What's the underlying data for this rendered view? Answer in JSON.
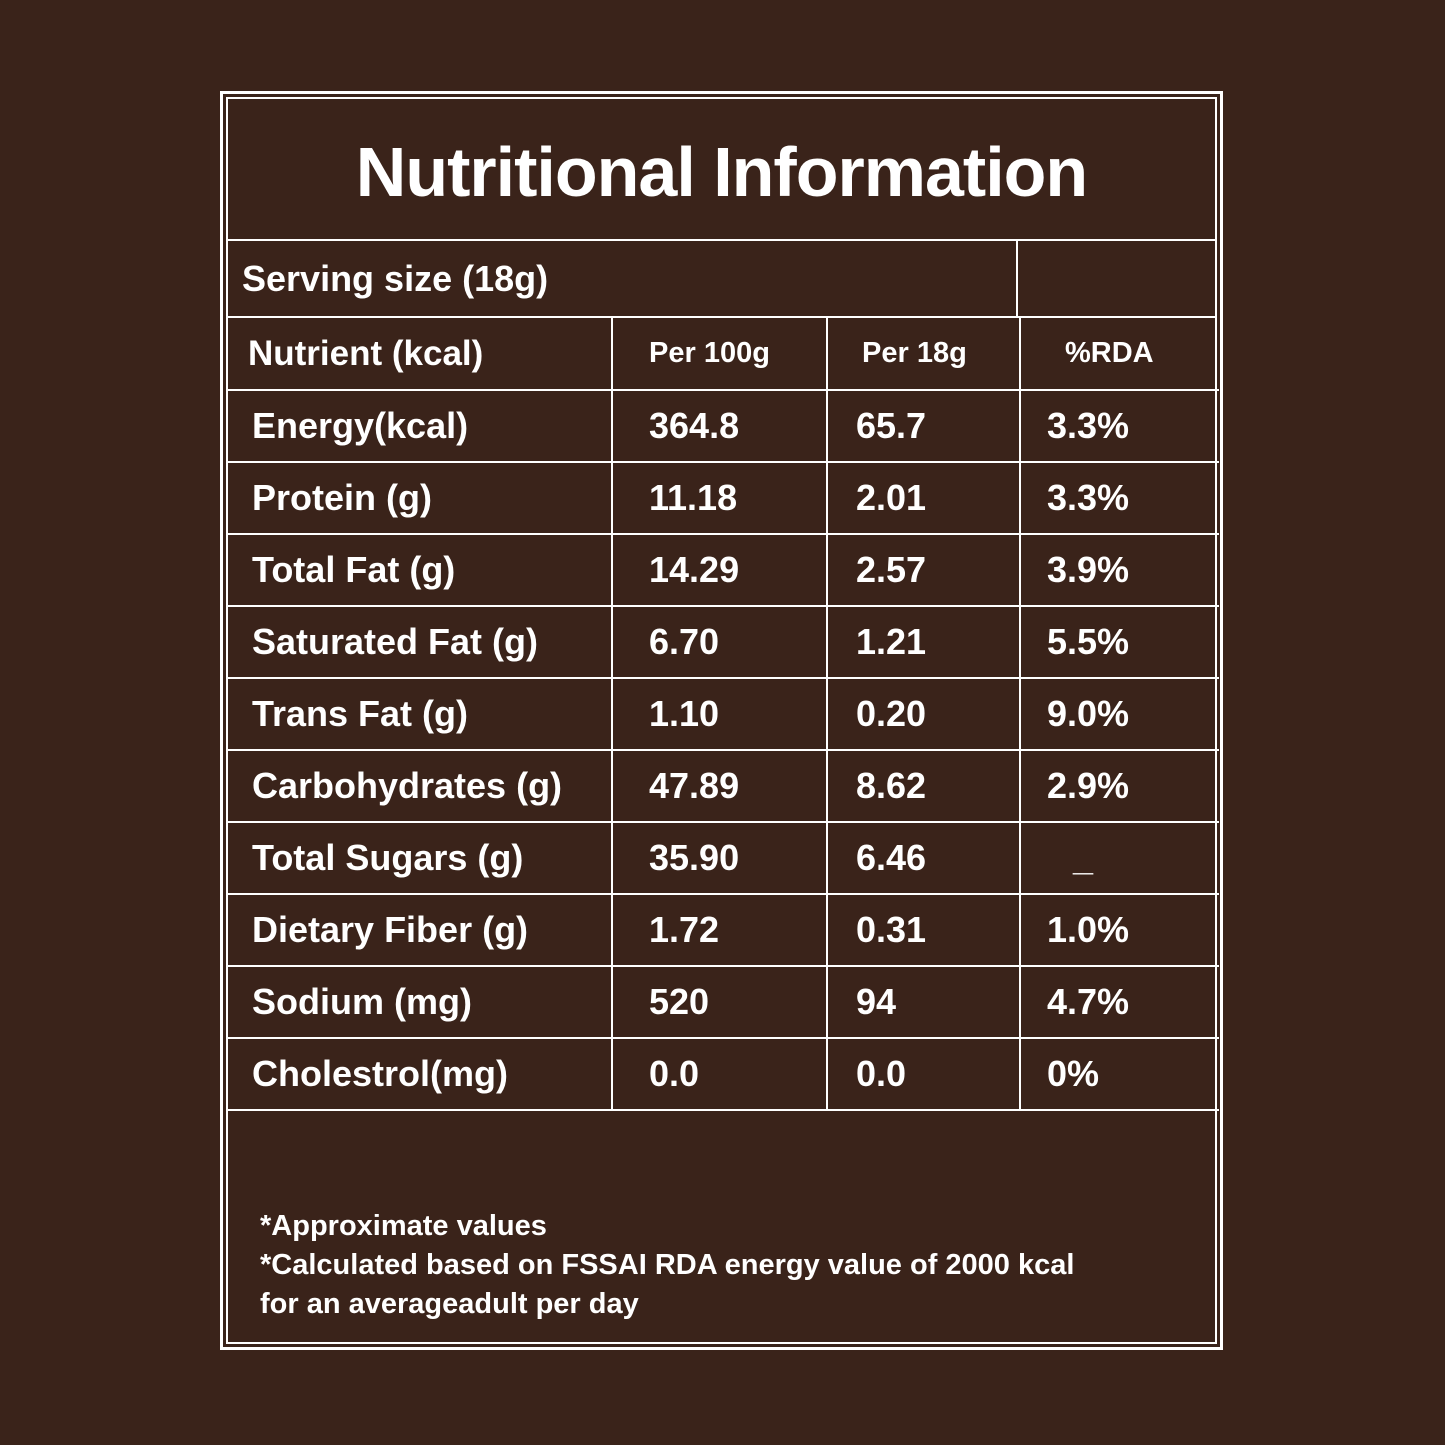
{
  "title": "Nutritional Information",
  "serving_size": "Serving size (18g)",
  "table": {
    "headers": [
      "Nutrient (kcal)",
      "Per 100g",
      "Per 18g",
      "%RDA"
    ],
    "rows": [
      [
        "Energy(kcal)",
        "364.8",
        "65.7",
        "3.3%"
      ],
      [
        "Protein (g)",
        "11.18",
        "2.01",
        "3.3%"
      ],
      [
        "Total Fat (g)",
        "14.29",
        "2.57",
        "3.9%"
      ],
      [
        "Saturated Fat (g)",
        "6.70",
        "1.21",
        "5.5%"
      ],
      [
        "Trans Fat (g)",
        "1.10",
        "0.20",
        "9.0%"
      ],
      [
        "Carbohydrates (g)",
        "47.89",
        "8.62",
        "2.9%"
      ],
      [
        "Total Sugars (g)",
        "35.90",
        "6.46",
        "_"
      ],
      [
        "Dietary Fiber (g)",
        "1.72",
        "0.31",
        "1.0%"
      ],
      [
        "Sodium (mg)",
        "520",
        "94",
        "4.7%"
      ],
      [
        "Cholestrol(mg)",
        "0.0",
        "0.0",
        "0%"
      ]
    ]
  },
  "footnotes": [
    "*Approximate values",
    "*Calculated based on FSSAI RDA energy value of 2000 kcal",
    "for an averageadult per day"
  ],
  "colors": {
    "background": "#3a231a",
    "foreground": "#ffffff"
  }
}
